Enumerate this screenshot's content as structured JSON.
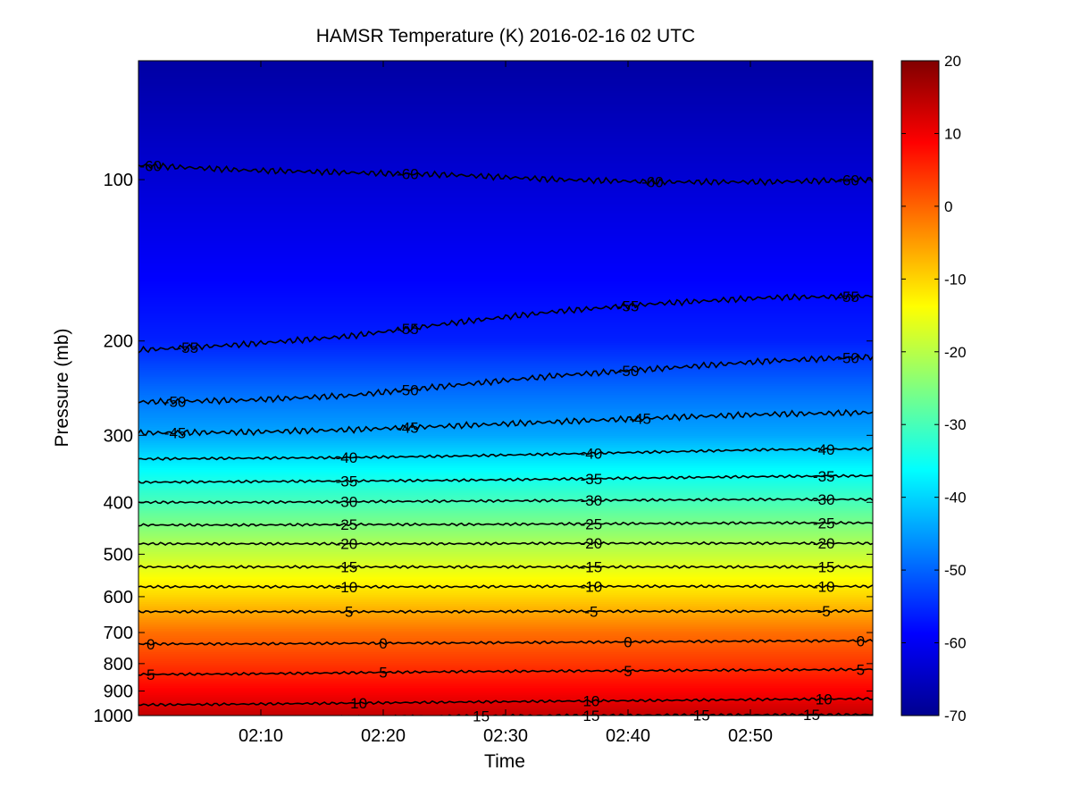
{
  "chart_data": {
    "type": "heatmap",
    "title": "HAMSR  Temperature (K) 2016-02-16 02 UTC",
    "xlabel": "Time",
    "ylabel": "Pressure (mb)",
    "x_range": [
      "02:00",
      "03:00"
    ],
    "x_ticks": [
      "02:10",
      "02:20",
      "02:30",
      "02:40",
      "02:50"
    ],
    "y_scale": "log",
    "y_range": [
      1000,
      60
    ],
    "y_reversed": true,
    "y_ticks": [
      100,
      200,
      300,
      400,
      500,
      600,
      700,
      800,
      900,
      1000
    ],
    "colormap": "jet",
    "color_range": [
      -70,
      20
    ],
    "colorbar_ticks": [
      20,
      10,
      0,
      -10,
      -20,
      -30,
      -40,
      -50,
      -60,
      -70
    ],
    "jet_colors": [
      "#00008f",
      "#0000ff",
      "#0080ff",
      "#00ffff",
      "#80ff80",
      "#ffff00",
      "#ff8000",
      "#ff0000",
      "#800000"
    ],
    "profile": [
      {
        "p": 60,
        "t": -68
      },
      {
        "p": 100,
        "t": -63
      },
      {
        "p": 150,
        "t": -59
      },
      {
        "p": 200,
        "t": -56
      },
      {
        "p": 250,
        "t": -49
      },
      {
        "p": 300,
        "t": -44
      },
      {
        "p": 350,
        "t": -36
      },
      {
        "p": 400,
        "t": -30
      },
      {
        "p": 500,
        "t": -19
      },
      {
        "p": 600,
        "t": -10
      },
      {
        "p": 700,
        "t": -1
      },
      {
        "p": 800,
        "t": 4
      },
      {
        "p": 900,
        "t": 9
      },
      {
        "p": 1000,
        "t": 14
      }
    ],
    "contours": [
      {
        "level": -60,
        "label": "-60",
        "pressure": [
          94,
          96,
          97,
          98,
          100,
          101,
          101,
          100
        ],
        "label_x": [
          "02:01",
          "02:22",
          "02:42",
          "02:58"
        ]
      },
      {
        "level": -55,
        "label": "-55",
        "pressure": [
          208,
          203,
          196,
          185,
          176,
          170,
          166,
          165
        ],
        "label_x": [
          "02:04",
          "02:22",
          "02:40",
          "02:58"
        ]
      },
      {
        "level": -50,
        "label": "-50",
        "pressure": [
          260,
          258,
          253,
          242,
          232,
          225,
          218,
          214
        ],
        "label_x": [
          "02:03",
          "02:22",
          "02:40",
          "02:58"
        ]
      },
      {
        "level": -45,
        "label": "-45",
        "pressure": [
          297,
          296,
          293,
          288,
          283,
          278,
          274,
          272
        ],
        "label_x": [
          "02:03",
          "02:22",
          "02:41"
        ]
      },
      {
        "level": -40,
        "label": "-40",
        "pressure": [
          332,
          331,
          330,
          328,
          325,
          322,
          319,
          318
        ],
        "label_x": [
          "02:17",
          "02:37",
          "02:56"
        ]
      },
      {
        "level": -35,
        "label": "-35",
        "pressure": [
          367,
          366,
          365,
          364,
          362,
          360,
          358,
          357
        ],
        "label_x": [
          "02:17",
          "02:37",
          "02:56"
        ]
      },
      {
        "level": -30,
        "label": "-30",
        "pressure": [
          400,
          400,
          399,
          398,
          397,
          396,
          395,
          395
        ],
        "label_x": [
          "02:17",
          "02:37",
          "02:56"
        ]
      },
      {
        "level": -25,
        "label": "-25",
        "pressure": [
          441,
          441,
          440,
          440,
          439,
          438,
          437,
          437
        ],
        "label_x": [
          "02:17",
          "02:37",
          "02:56"
        ]
      },
      {
        "level": -20,
        "label": "-20",
        "pressure": [
          478,
          478,
          478,
          478,
          477,
          477,
          477,
          477
        ],
        "label_x": [
          "02:17",
          "02:37",
          "02:56"
        ]
      },
      {
        "level": -15,
        "label": "-15",
        "pressure": [
          528,
          528,
          528,
          528,
          528,
          528,
          528,
          528
        ],
        "label_x": [
          "02:17",
          "02:37",
          "02:56"
        ]
      },
      {
        "level": -10,
        "label": "-10",
        "pressure": [
          575,
          575,
          575,
          575,
          574,
          574,
          574,
          574
        ],
        "label_x": [
          "02:17",
          "02:37",
          "02:56"
        ]
      },
      {
        "level": -5,
        "label": "-5",
        "pressure": [
          640,
          640,
          640,
          640,
          639,
          639,
          639,
          638
        ],
        "label_x": [
          "02:17",
          "02:37",
          "02:56"
        ]
      },
      {
        "level": 0,
        "label": "0",
        "pressure": [
          735,
          735,
          733,
          732,
          730,
          728,
          726,
          725
        ],
        "label_x": [
          "02:01",
          "02:20",
          "02:40",
          "02:59"
        ]
      },
      {
        "level": 5,
        "label": "5",
        "pressure": [
          838,
          836,
          832,
          828,
          826,
          824,
          822,
          820
        ],
        "label_x": [
          "02:01",
          "02:20",
          "02:40",
          "02:59"
        ]
      },
      {
        "level": 10,
        "label": "10",
        "pressure": [
          955,
          952,
          948,
          944,
          940,
          937,
          933,
          930
        ],
        "label_x": [
          "02:18",
          "02:37",
          "02:56"
        ]
      },
      {
        "level": 15,
        "label": "15",
        "pressure": [
          1010,
          1008,
          1005,
          1002,
          1000,
          998,
          997,
          996
        ],
        "label_x": [
          "02:28",
          "02:37",
          "02:46",
          "02:55"
        ]
      }
    ]
  }
}
